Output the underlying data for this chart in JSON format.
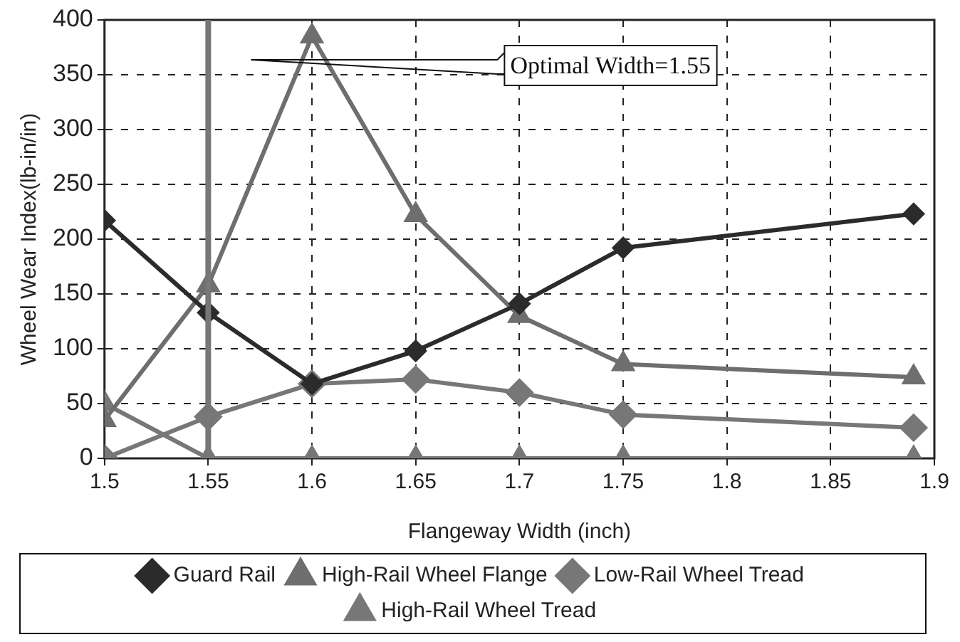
{
  "chart_data": {
    "type": "line",
    "xlabel": "Flangeway Width (inch)",
    "ylabel": "Wheel Wear Index(lb-in/in)",
    "x": [
      1.5,
      1.55,
      1.6,
      1.65,
      1.7,
      1.75,
      1.89
    ],
    "series": [
      {
        "name": "Guard Rail",
        "color": "#2b2b2b",
        "marker": "diamond",
        "values": [
          217,
          133,
          68,
          98,
          141,
          192,
          223
        ]
      },
      {
        "name": "High-Rail Wheel Flange",
        "color": "#6e6e6e",
        "marker": "triangle",
        "values": [
          35,
          158,
          385,
          222,
          130,
          86,
          74
        ]
      },
      {
        "name": "Low-Rail Wheel Tread",
        "color": "#777777",
        "marker": "diamond",
        "values": [
          0,
          38,
          68,
          72,
          60,
          40,
          28
        ]
      },
      {
        "name": "High-Rail Wheel Tread",
        "color": "#777777",
        "marker": "triangle",
        "values": [
          50,
          0,
          0,
          0,
          0,
          0,
          0
        ]
      }
    ],
    "xlim": [
      1.5,
      1.9
    ],
    "xticks": [
      1.5,
      1.55,
      1.6,
      1.65,
      1.7,
      1.75,
      1.8,
      1.85,
      1.9
    ],
    "ylim": [
      0,
      400
    ],
    "yticks": [
      0,
      50,
      100,
      150,
      200,
      250,
      300,
      350,
      400
    ],
    "ref_lines": [
      {
        "axis": "x",
        "value": 1.55,
        "color": "#777777"
      }
    ],
    "annotations": [
      "Optimal Width=1.55"
    ],
    "grid": true,
    "line_style": "solid",
    "legend": "bottom"
  }
}
